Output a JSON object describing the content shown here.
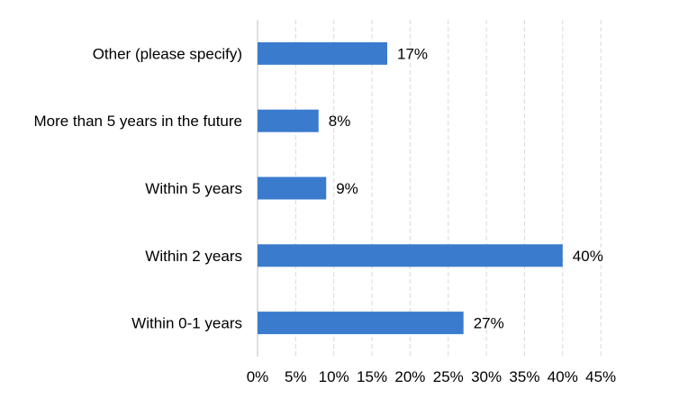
{
  "chart_data": {
    "type": "bar",
    "orientation": "horizontal",
    "categories": [
      "Other (please specify)",
      "More than 5 years in the future",
      "Within 5 years",
      "Within 2 years",
      "Within 0-1 years"
    ],
    "values": [
      17,
      8,
      9,
      40,
      27
    ],
    "data_labels": [
      "17%",
      "8%",
      "9%",
      "40%",
      "27%"
    ],
    "xlim": [
      0,
      45
    ],
    "x_ticks": [
      0,
      5,
      10,
      15,
      20,
      25,
      30,
      35,
      40,
      45
    ],
    "x_tick_labels": [
      "0%",
      "5%",
      "10%",
      "15%",
      "20%",
      "25%",
      "30%",
      "35%",
      "40%",
      "45%"
    ],
    "grid": "vertical-dashed",
    "legend": "none",
    "colors": {
      "bar": "#3a7bcd",
      "grid": "#d9d9d9",
      "axis": "#bfbfbf",
      "text": "#000000"
    }
  }
}
